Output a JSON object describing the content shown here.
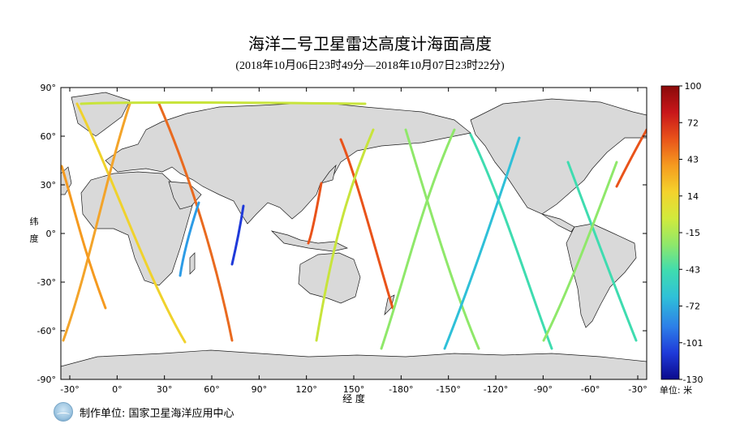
{
  "chart_data": {
    "type": "map",
    "title": "海洋二号卫星雷达高度计海面高度",
    "subtitle": "(2018年10月06日23时49分—2018年10月07日23时22分)",
    "xlabel": "经 度",
    "ylabel_chars": [
      "纬",
      "度"
    ],
    "x_ticks": [
      "-30°",
      "0°",
      "30°",
      "60°",
      "90°",
      "120°",
      "150°",
      "-180°",
      "-150°",
      "-120°",
      "-90°",
      "-60°",
      "-30°"
    ],
    "y_ticks": [
      "90°",
      "60°",
      "30°",
      "0°",
      "-30°",
      "-60°",
      "-90°"
    ],
    "colorbar": {
      "ticks": [
        "100",
        "72",
        "43",
        "14",
        "-15",
        "-43",
        "-72",
        "-101",
        "-130"
      ],
      "min": -130,
      "max": 100,
      "unit": "单位: 米",
      "colors": [
        "#0b0a8c",
        "#1f3ad9",
        "#2d7fe8",
        "#2fc0d8",
        "#3fdcb0",
        "#8fe86a",
        "#d2ea3c",
        "#f4d22c",
        "#f59a1f",
        "#e9531a",
        "#c8161a",
        "#8a0a0a"
      ]
    }
  },
  "footer": {
    "producer": "制作单位: 国家卫星海洋应用中心"
  },
  "colors": {
    "land": "#d9d9d9",
    "coast": "#1a1a1a",
    "ocean": "#ffffff"
  }
}
